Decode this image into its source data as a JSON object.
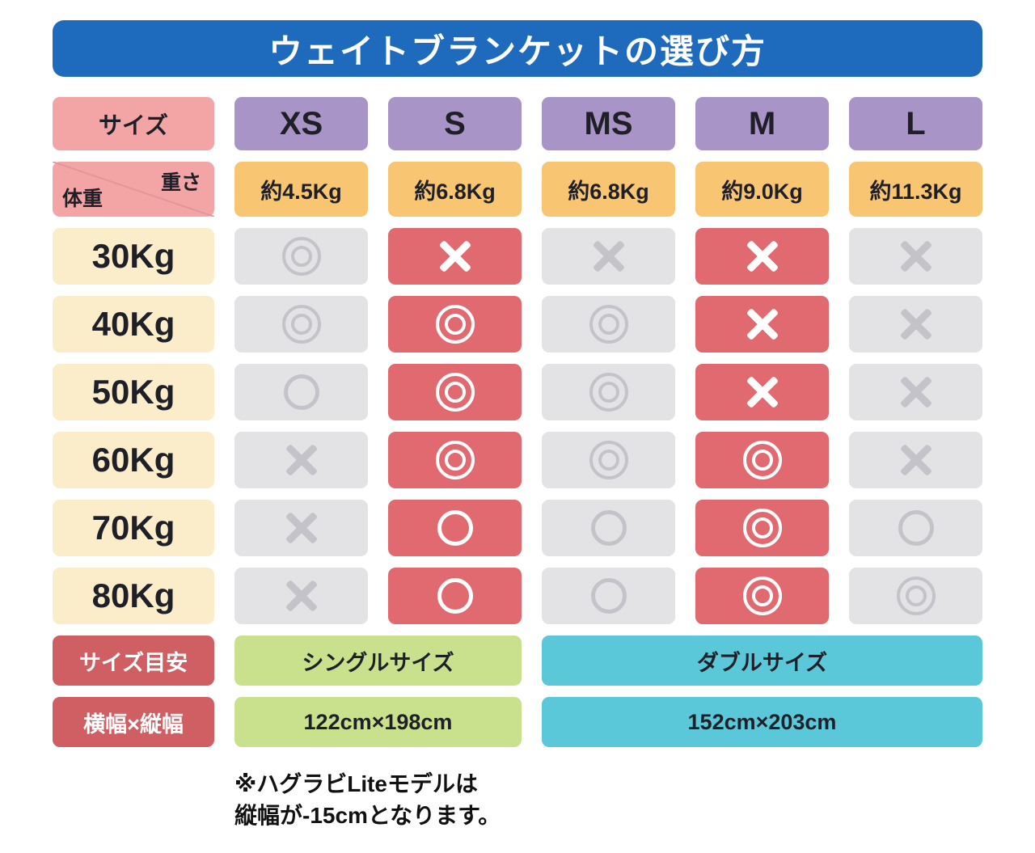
{
  "chart_data": {
    "type": "table",
    "title": "ウェイトブランケットの選び方",
    "legend": {
      "size_label": "サイズ",
      "weight_label": "重さ",
      "body_weight_label": "体重"
    },
    "symbol_legend": {
      "double-circle": "◎",
      "circle": "○",
      "cross": "×"
    },
    "columns": [
      {
        "size": "XS",
        "weight": "約4.5Kg",
        "highlight": false
      },
      {
        "size": "S",
        "weight": "約6.8Kg",
        "highlight": true
      },
      {
        "size": "MS",
        "weight": "約6.8Kg",
        "highlight": false
      },
      {
        "size": "M",
        "weight": "約9.0Kg",
        "highlight": true
      },
      {
        "size": "L",
        "weight": "約11.3Kg",
        "highlight": false
      }
    ],
    "rows": [
      {
        "body_weight": "30Kg",
        "ratings": [
          "double-circle",
          "cross",
          "cross",
          "cross",
          "cross"
        ]
      },
      {
        "body_weight": "40Kg",
        "ratings": [
          "double-circle",
          "double-circle",
          "double-circle",
          "cross",
          "cross"
        ]
      },
      {
        "body_weight": "50Kg",
        "ratings": [
          "circle",
          "double-circle",
          "double-circle",
          "cross",
          "cross"
        ]
      },
      {
        "body_weight": "60Kg",
        "ratings": [
          "cross",
          "double-circle",
          "double-circle",
          "double-circle",
          "cross"
        ]
      },
      {
        "body_weight": "70Kg",
        "ratings": [
          "cross",
          "circle",
          "circle",
          "double-circle",
          "circle"
        ]
      },
      {
        "body_weight": "80Kg",
        "ratings": [
          "cross",
          "circle",
          "circle",
          "double-circle",
          "double-circle"
        ]
      }
    ],
    "footer": {
      "size_guide_label": "サイズ目安",
      "single_size": "シングルサイズ",
      "double_size": "ダブルサイズ",
      "dimensions_label": "横幅×縦幅",
      "single_dimensions": "122cm×198cm",
      "double_dimensions": "152cm×203cm",
      "single_span_columns": [
        "XS",
        "S"
      ],
      "double_span_columns": [
        "MS",
        "M",
        "L"
      ]
    },
    "note_lines": [
      "※ハグラビLiteモデルは",
      "縦幅が-15cmとなります。"
    ]
  },
  "colors": {
    "banner_blue": "#1e6bbd",
    "banner_text": "#ffffff",
    "header_pink": "#f3a5a5",
    "divider_pink": "#e0969a",
    "header_purple": "#a894c6",
    "weight_orange": "#f8c672",
    "body_weight_cream": "#fbedca",
    "cell_gray": "#e3e3e6",
    "symbol_gray": "#c4c3ca",
    "cell_red": "#e06a70",
    "label_red": "#d05f64",
    "single_green": "#c9e18d",
    "double_cyan": "#5ac8d8",
    "text_dark": "#1f1f28"
  }
}
